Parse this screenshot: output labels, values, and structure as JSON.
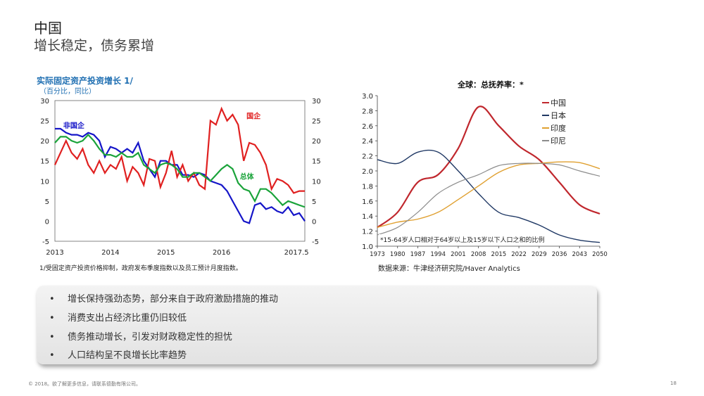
{
  "slide": {
    "title": "中国",
    "subtitle": "增长稳定，债务累增",
    "footer": "© 2018。欲了解更多信息，请联系德勤有限公司。",
    "page_number": "18"
  },
  "left_chart": {
    "title": "实际固定资产投资增长 1/",
    "subtitle": "（百分比，同比）",
    "note": "1/受固定资产投资价格抑制，政府发布季度指数以及员工预计月度指数。",
    "y_ticks": [
      "30",
      "25",
      "20",
      "15",
      "10",
      "5",
      "0",
      "-5"
    ],
    "x_ticks": [
      "2013",
      "2014",
      "2015",
      "2016",
      "2017.5"
    ],
    "labels": {
      "private": "非国企",
      "state": "国企",
      "total": "总体"
    },
    "colors": {
      "private": "#1515c8",
      "state": "#e02020",
      "total": "#1aa33a"
    }
  },
  "right_chart": {
    "title": "全球：总抚养率：*",
    "footnote": "*15-64岁人口相对于64岁以上及15岁以下人口之和的比例",
    "source": "数据来源：牛津经济研究院/Haver Analytics",
    "y_ticks": [
      "3.0",
      "2.8",
      "2.6",
      "2.4",
      "2.2",
      "2.0",
      "1.8",
      "1.6",
      "1.4",
      "1.2",
      "1.0"
    ],
    "x_ticks": [
      "1973",
      "1980",
      "1987",
      "1994",
      "2001",
      "2008",
      "2015",
      "2022",
      "2029",
      "2036",
      "2043",
      "2050"
    ],
    "legend": [
      {
        "name": "中国",
        "color": "#c0272d"
      },
      {
        "name": "日本",
        "color": "#1f3864"
      },
      {
        "name": "印度",
        "color": "#e0a030"
      },
      {
        "name": "印尼",
        "color": "#8c8c8c"
      }
    ]
  },
  "bullets": [
    "增长保持强劲态势，部分来自于政府激励措施的推动",
    "消费支出占经济比重仍旧较低",
    "债务推动增长，引发对财政稳定性的担忧",
    "人口结构呈不良增长比率趋势"
  ],
  "chart_data": [
    {
      "type": "line",
      "title": "实际固定资产投资增长 1/",
      "ylim": [
        -5,
        30
      ],
      "series": [
        {
          "name": "非国企",
          "x": [
            2013.0,
            2013.1,
            2013.2,
            2013.3,
            2013.4,
            2013.5,
            2013.6,
            2013.7,
            2013.8,
            2013.9,
            2014.0,
            2014.1,
            2014.2,
            2014.3,
            2014.4,
            2014.5,
            2014.6,
            2014.7,
            2014.8,
            2014.9,
            2015.0,
            2015.1,
            2015.2,
            2015.3,
            2015.4,
            2015.5,
            2015.6,
            2015.7,
            2015.8,
            2015.9,
            2016.0,
            2016.1,
            2016.2,
            2016.3,
            2016.4,
            2016.5,
            2016.6,
            2016.7,
            2016.8,
            2016.9,
            2017.0,
            2017.1,
            2017.2,
            2017.3,
            2017.4,
            2017.5
          ],
          "values": [
            23,
            23,
            22,
            21.5,
            21.5,
            21,
            22,
            21.5,
            20,
            16,
            18.5,
            18,
            17,
            18,
            17,
            19.5,
            15,
            13,
            11,
            15,
            15,
            14,
            14,
            11.5,
            11.5,
            11,
            12,
            11.5,
            10,
            9.5,
            9,
            7.5,
            5,
            2.5,
            0,
            -0.5,
            4,
            4.5,
            3,
            3.5,
            2.5,
            2,
            3.5,
            1.5,
            2,
            0
          ]
        },
        {
          "name": "国企",
          "x": [
            2013.0,
            2013.1,
            2013.2,
            2013.3,
            2013.4,
            2013.5,
            2013.6,
            2013.7,
            2013.8,
            2013.9,
            2014.0,
            2014.1,
            2014.2,
            2014.3,
            2014.4,
            2014.5,
            2014.6,
            2014.7,
            2014.8,
            2014.9,
            2015.0,
            2015.1,
            2015.2,
            2015.3,
            2015.4,
            2015.5,
            2015.6,
            2015.7,
            2015.8,
            2015.9,
            2016.0,
            2016.1,
            2016.2,
            2016.3,
            2016.4,
            2016.5,
            2016.6,
            2016.7,
            2016.8,
            2016.9,
            2017.0,
            2017.1,
            2017.2,
            2017.3,
            2017.4,
            2017.5
          ],
          "values": [
            14,
            17,
            20,
            17,
            15.5,
            18,
            14,
            12,
            15,
            12,
            14,
            13,
            16,
            10,
            13.5,
            12,
            9,
            15.5,
            15,
            8.5,
            12,
            17.5,
            11,
            14,
            10,
            12,
            9,
            8,
            25,
            24,
            28,
            25,
            26.5,
            24,
            15,
            19.5,
            19,
            17,
            14,
            8,
            10.5,
            10,
            9,
            7,
            7.5,
            7.5
          ]
        },
        {
          "name": "总体",
          "x": [
            2013.0,
            2013.1,
            2013.2,
            2013.3,
            2013.4,
            2013.5,
            2013.6,
            2013.7,
            2013.8,
            2013.9,
            2014.0,
            2014.1,
            2014.2,
            2014.3,
            2014.4,
            2014.5,
            2014.6,
            2014.7,
            2014.8,
            2014.9,
            2015.0,
            2015.1,
            2015.2,
            2015.3,
            2015.4,
            2015.5,
            2015.6,
            2015.7,
            2015.8,
            2015.9,
            2016.0,
            2016.1,
            2016.2,
            2016.3,
            2016.4,
            2016.5,
            2016.6,
            2016.7,
            2016.8,
            2016.9,
            2017.0,
            2017.1,
            2017.2,
            2017.3,
            2017.4,
            2017.5
          ],
          "values": [
            19.5,
            21,
            21,
            20,
            19.5,
            20,
            21.5,
            20,
            18,
            16.5,
            16.5,
            16,
            17,
            16,
            16,
            17,
            14,
            13,
            12,
            14,
            14.5,
            14,
            13,
            11,
            11,
            12,
            12,
            11,
            10,
            11.5,
            13,
            14,
            13,
            9.5,
            8,
            7.5,
            5,
            8,
            8,
            7,
            5.5,
            4,
            5,
            4.5,
            4,
            3.5
          ]
        }
      ]
    },
    {
      "type": "line",
      "title": "全球：总抚养率：*",
      "ylim": [
        1.0,
        3.0
      ],
      "x": [
        1973,
        1980,
        1987,
        1994,
        2001,
        2008,
        2015,
        2022,
        2029,
        2036,
        2043,
        2050
      ],
      "series": [
        {
          "name": "中国",
          "values": [
            1.25,
            1.45,
            1.85,
            1.95,
            2.3,
            2.85,
            2.6,
            2.33,
            2.15,
            1.85,
            1.55,
            1.43
          ]
        },
        {
          "name": "日本",
          "values": [
            2.15,
            2.1,
            2.25,
            2.25,
            2.0,
            1.7,
            1.45,
            1.38,
            1.28,
            1.15,
            1.08,
            1.05
          ]
        },
        {
          "name": "印度",
          "values": [
            1.25,
            1.32,
            1.36,
            1.45,
            1.62,
            1.8,
            1.98,
            2.08,
            2.1,
            2.12,
            2.11,
            2.03
          ]
        },
        {
          "name": "印尼",
          "values": [
            1.15,
            1.25,
            1.45,
            1.7,
            1.85,
            1.95,
            2.07,
            2.1,
            2.1,
            2.08,
            2.0,
            1.93
          ]
        }
      ]
    }
  ]
}
